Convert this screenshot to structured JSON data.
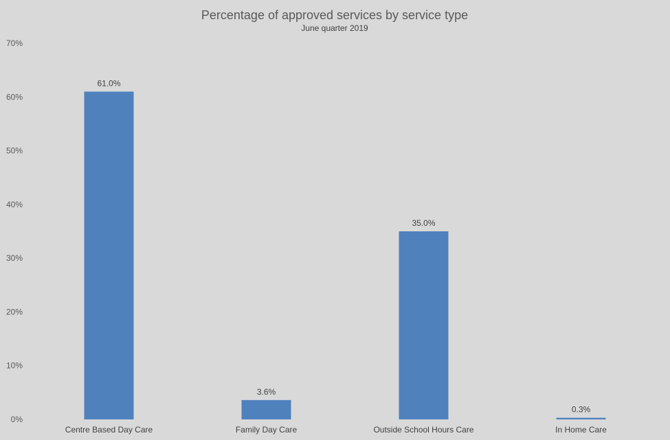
{
  "chart_data": {
    "type": "bar",
    "title": "Percentage of approved services by service type",
    "subtitle": "June  quarter  2019",
    "xlabel": "",
    "ylabel": "",
    "categories": [
      "Centre Based Day Care",
      "Family Day Care",
      "Outside School Hours Care",
      "In Home Care"
    ],
    "values": [
      61.0,
      3.6,
      35.0,
      0.3
    ],
    "data_labels": [
      "61.0%",
      "3.6%",
      "35.0%",
      "0.3%"
    ],
    "ylim": [
      0,
      70
    ],
    "y_ticks": [
      0,
      10,
      20,
      30,
      40,
      50,
      60,
      70
    ],
    "y_tick_labels": [
      "0%",
      "10%",
      "20%",
      "30%",
      "40%",
      "50%",
      "60%",
      "70%"
    ],
    "grid": false,
    "legend": "none",
    "bar_color": "#4f81bd",
    "background_color": "#d9d9d9"
  }
}
